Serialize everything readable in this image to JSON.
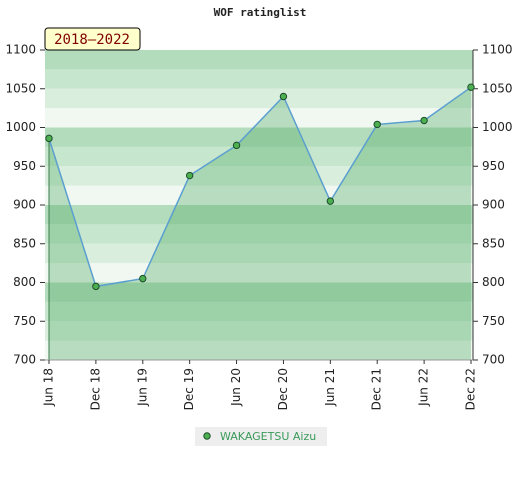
{
  "chart_data": {
    "type": "area",
    "title": "WOF ratinglist",
    "subtitle": "2018–2022",
    "categories": [
      "Jun 18",
      "Dec 18",
      "Jun 19",
      "Dec 19",
      "Jun 20",
      "Dec 20",
      "Jun 21",
      "Dec 21",
      "Jun 22",
      "Dec 22"
    ],
    "series": [
      {
        "name": "WAKAGETSU Aizu",
        "color": "#4caf50",
        "line_color": "#5b9fd0",
        "values": [
          986,
          795,
          805,
          938,
          977,
          1040,
          905,
          1004,
          1009,
          1052
        ]
      }
    ],
    "ylim": [
      700,
      1100
    ],
    "yticks": [
      700,
      750,
      800,
      850,
      900,
      950,
      1000,
      1050,
      1100
    ],
    "y2lim": [
      700,
      1100
    ],
    "y2ticks": [
      700,
      750,
      800,
      850,
      900,
      950,
      1000,
      1050,
      1100
    ],
    "legend": "bottom"
  }
}
